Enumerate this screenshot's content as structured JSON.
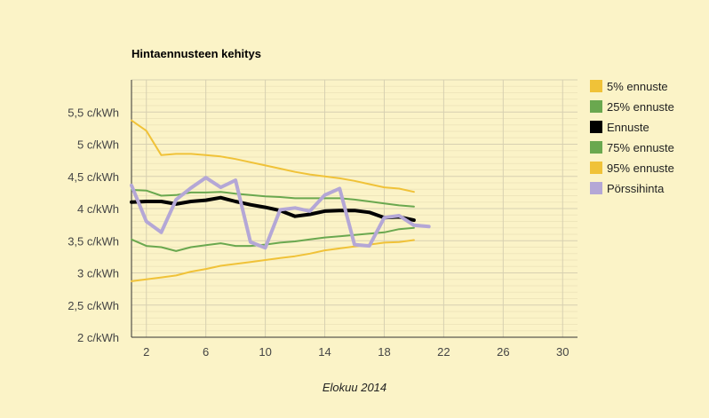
{
  "chart_data": {
    "type": "line",
    "title": "Hintaennusteen kehitys",
    "xlabel": "Elokuu 2014",
    "ylabel": "",
    "xlim": [
      1,
      31
    ],
    "ylim": [
      2,
      6
    ],
    "x_ticks": [
      2,
      6,
      10,
      14,
      18,
      22,
      26,
      30
    ],
    "y_ticks": [
      {
        "value": 2,
        "label": "2 c/kWh"
      },
      {
        "value": 2.5,
        "label": "2,5 c/kWh"
      },
      {
        "value": 3,
        "label": "3 c/kWh"
      },
      {
        "value": 3.5,
        "label": "3,5 c/kWh"
      },
      {
        "value": 4,
        "label": "4 c/kWh"
      },
      {
        "value": 4.5,
        "label": "4,5 c/kWh"
      },
      {
        "value": 5,
        "label": "5 c/kWh"
      },
      {
        "value": 5.5,
        "label": "5,5 c/kWh"
      }
    ],
    "grid": true,
    "legend_position": "right",
    "series": [
      {
        "name": "5% ennuste",
        "color": "#f0c238",
        "width": 2,
        "x": [
          1,
          2,
          3,
          4,
          5,
          6,
          7,
          8,
          9,
          10,
          11,
          12,
          13,
          14,
          15,
          16,
          17,
          18,
          19,
          20
        ],
        "values": [
          2.87,
          2.9,
          2.93,
          2.96,
          3.02,
          3.06,
          3.11,
          3.14,
          3.17,
          3.2,
          3.23,
          3.26,
          3.3,
          3.35,
          3.38,
          3.41,
          3.44,
          3.47,
          3.48,
          3.51
        ]
      },
      {
        "name": "25% ennuste",
        "color": "#6aa84f",
        "width": 2,
        "x": [
          1,
          2,
          3,
          4,
          5,
          6,
          7,
          8,
          9,
          10,
          11,
          12,
          13,
          14,
          15,
          16,
          17,
          18,
          19,
          20
        ],
        "values": [
          3.52,
          3.42,
          3.4,
          3.34,
          3.4,
          3.43,
          3.46,
          3.42,
          3.42,
          3.44,
          3.47,
          3.49,
          3.52,
          3.55,
          3.57,
          3.59,
          3.61,
          3.63,
          3.68,
          3.7
        ]
      },
      {
        "name": "Ennuste",
        "color": "#000000",
        "width": 4,
        "x": [
          1,
          2,
          3,
          4,
          5,
          6,
          7,
          8,
          9,
          10,
          11,
          12,
          13,
          14,
          15,
          16,
          17,
          18,
          19,
          20
        ],
        "values": [
          4.1,
          4.11,
          4.11,
          4.07,
          4.11,
          4.13,
          4.17,
          4.11,
          4.06,
          4.02,
          3.97,
          3.88,
          3.91,
          3.96,
          3.97,
          3.97,
          3.94,
          3.86,
          3.87,
          3.82
        ]
      },
      {
        "name": "75% ennuste",
        "color": "#6aa84f",
        "width": 2,
        "x": [
          1,
          2,
          3,
          4,
          5,
          6,
          7,
          8,
          9,
          10,
          11,
          12,
          13,
          14,
          15,
          16,
          17,
          18,
          19,
          20
        ],
        "values": [
          4.29,
          4.28,
          4.2,
          4.21,
          4.25,
          4.25,
          4.26,
          4.23,
          4.21,
          4.19,
          4.18,
          4.16,
          4.16,
          4.16,
          4.16,
          4.14,
          4.11,
          4.08,
          4.05,
          4.03
        ]
      },
      {
        "name": "95% ennuste",
        "color": "#f0c238",
        "width": 2,
        "x": [
          1,
          2,
          3,
          4,
          5,
          6,
          7,
          8,
          9,
          10,
          11,
          12,
          13,
          14,
          15,
          16,
          17,
          18,
          19,
          20
        ],
        "values": [
          5.37,
          5.21,
          4.83,
          4.85,
          4.85,
          4.83,
          4.81,
          4.77,
          4.72,
          4.67,
          4.62,
          4.57,
          4.53,
          4.5,
          4.47,
          4.43,
          4.38,
          4.33,
          4.31,
          4.26
        ]
      },
      {
        "name": "Pörssihinta",
        "color": "#b4a7d6",
        "width": 4,
        "x": [
          1,
          2,
          3,
          4,
          5,
          6,
          7,
          8,
          9,
          10,
          11,
          12,
          13,
          14,
          15,
          16,
          17,
          18,
          19,
          20,
          21
        ],
        "values": [
          4.36,
          3.8,
          3.63,
          4.14,
          4.32,
          4.48,
          4.33,
          4.44,
          3.48,
          3.39,
          3.98,
          4.01,
          3.96,
          4.21,
          4.31,
          3.44,
          3.42,
          3.86,
          3.89,
          3.74,
          3.72
        ]
      }
    ]
  }
}
